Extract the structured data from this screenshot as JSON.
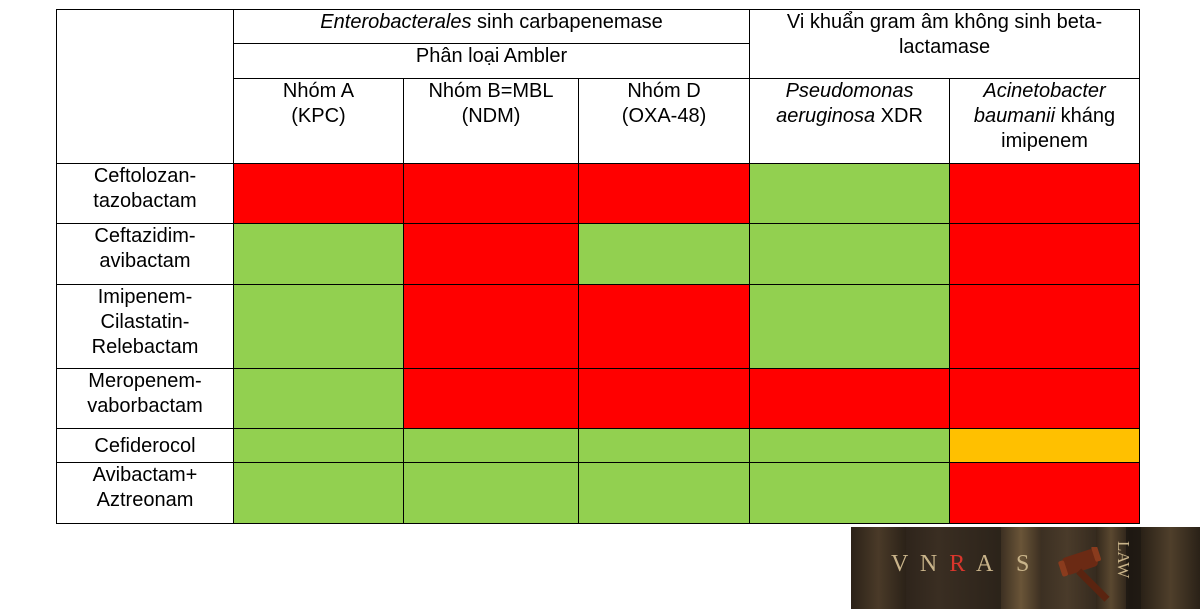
{
  "header": {
    "group1": {
      "italic": "Enterobacterales",
      "rest": " sinh carbapenemase"
    },
    "group2": "Vi khuẩn gram âm không sinh beta-lactamase",
    "subgroup1": "Phân loại Ambler",
    "cols": [
      {
        "line1": "Nhóm A",
        "line2": "(KPC)"
      },
      {
        "line1": "Nhóm B=MBL",
        "line2": "(NDM)"
      },
      {
        "line1": "Nhóm D",
        "line2": "(OXA-48)"
      },
      {
        "italic": "Pseudomonas",
        "italic2": "aeruginosa",
        "rest": " XDR"
      },
      {
        "italic": "Acinetobacter",
        "italic2": "baumanii",
        "rest": " kháng",
        "line3": "imipenem"
      }
    ]
  },
  "rows": [
    {
      "label": [
        "Ceftolozan-",
        "tazobactam"
      ],
      "cells": [
        "red",
        "red",
        "red",
        "green",
        "red"
      ]
    },
    {
      "label": [
        "Ceftazidim-",
        "avibactam"
      ],
      "cells": [
        "green",
        "red",
        "green",
        "green",
        "red"
      ]
    },
    {
      "label": [
        "Imipenem-",
        "Cilastatin-",
        "Relebactam"
      ],
      "cells": [
        "green",
        "red",
        "red",
        "green",
        "red"
      ]
    },
    {
      "label": [
        "Meropenem-",
        "vaborbactam"
      ],
      "cells": [
        "green",
        "red",
        "red",
        "red",
        "red"
      ]
    },
    {
      "label": [
        "Cefiderocol"
      ],
      "cells": [
        "green",
        "green",
        "green",
        "green",
        "orange"
      ]
    },
    {
      "label": [
        "Avibactam+",
        "Aztreonam"
      ],
      "cells": [
        "green",
        "green",
        "green",
        "green",
        "red"
      ]
    }
  ],
  "colors": {
    "red": "#ff0000",
    "green": "#92d050",
    "orange": "#ffc000"
  },
  "logo": {
    "letters": [
      "V",
      "N",
      "R",
      "A",
      "S"
    ],
    "side": "LAW"
  }
}
